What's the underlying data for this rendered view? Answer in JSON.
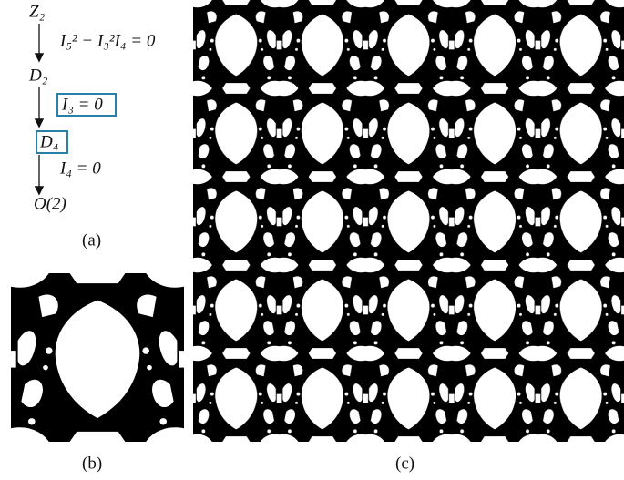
{
  "diagram": {
    "nodes": [
      {
        "label": "Z₂"
      },
      {
        "label": "D₂"
      },
      {
        "label": "D₄"
      },
      {
        "label": "O(2)"
      }
    ],
    "edges": [
      {
        "label": "I₅² − I₃²I₄ = 0"
      },
      {
        "label": "I₃ = 0"
      },
      {
        "label": "I₄ = 0"
      }
    ]
  },
  "captions": {
    "a": "(a)",
    "b": "(b)",
    "c": "(c)"
  }
}
